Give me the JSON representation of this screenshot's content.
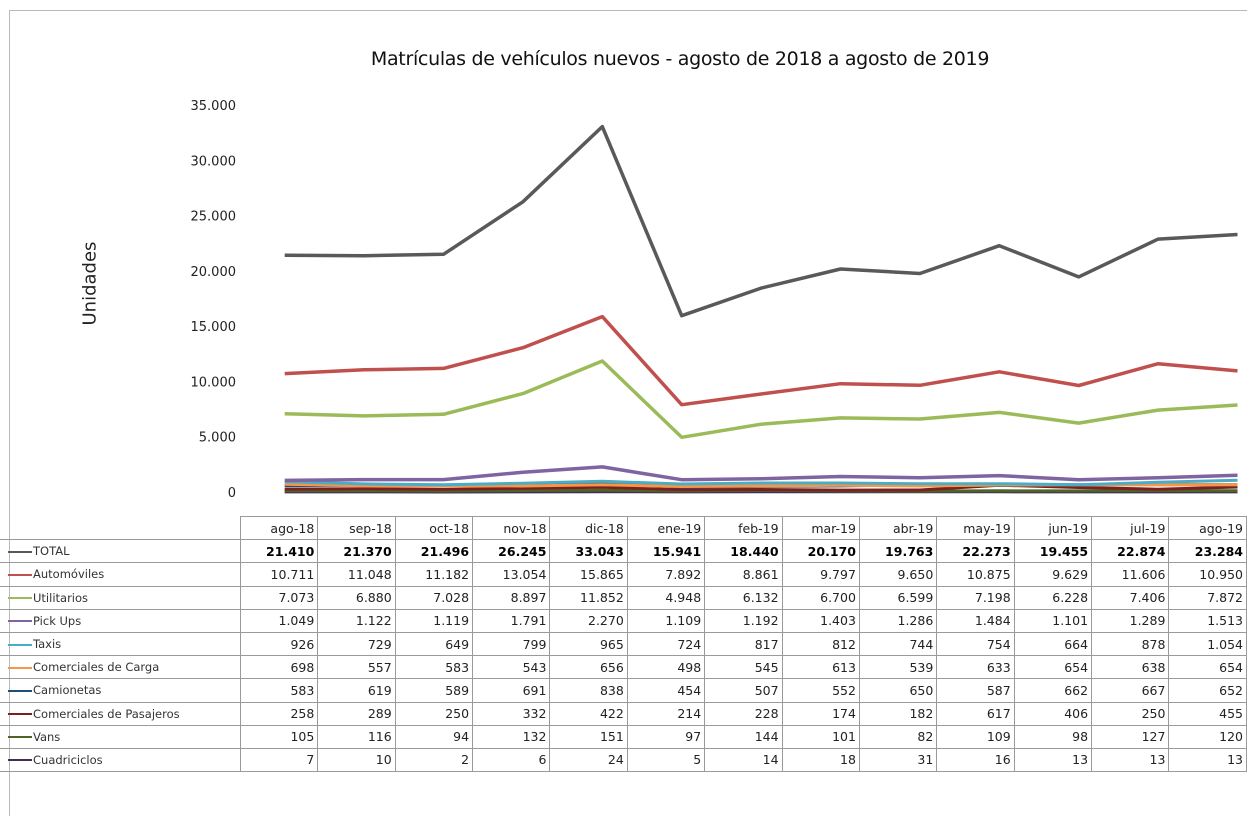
{
  "chart_data": {
    "type": "line",
    "title": "Matrículas de vehículos nuevos - agosto de 2018 a agosto de 2019",
    "ylabel": "Unidades",
    "xlabel": "",
    "ylim": [
      0,
      35000
    ],
    "yticks": [
      "0",
      "5.000",
      "10.000",
      "15.000",
      "20.000",
      "25.000",
      "30.000",
      "35.000"
    ],
    "grid": false,
    "legend": "table-below",
    "categories": [
      "ago-18",
      "sep-18",
      "oct-18",
      "nov-18",
      "dic-18",
      "ene-19",
      "feb-19",
      "mar-19",
      "abr-19",
      "may-19",
      "jun-19",
      "jul-19",
      "ago-19"
    ],
    "series": [
      {
        "name": "TOTAL",
        "color": "#595959",
        "values": [
          21410,
          21370,
          21496,
          26245,
          33043,
          15941,
          18440,
          20170,
          19763,
          22273,
          19455,
          22874,
          23284
        ],
        "labels": [
          "21.410",
          "21.370",
          "21.496",
          "26.245",
          "33.043",
          "15.941",
          "18.440",
          "20.170",
          "19.763",
          "22.273",
          "19.455",
          "22.874",
          "23.284"
        ]
      },
      {
        "name": "Automóviles",
        "color": "#c0504d",
        "values": [
          10711,
          11048,
          11182,
          13054,
          15865,
          7892,
          8861,
          9797,
          9650,
          10875,
          9629,
          11606,
          10950
        ],
        "labels": [
          "10.711",
          "11.048",
          "11.182",
          "13.054",
          "15.865",
          "7.892",
          "8.861",
          "9.797",
          "9.650",
          "10.875",
          "9.629",
          "11.606",
          "10.950"
        ]
      },
      {
        "name": "Utilitarios",
        "color": "#9bbb59",
        "values": [
          7073,
          6880,
          7028,
          8897,
          11852,
          4948,
          6132,
          6700,
          6599,
          7198,
          6228,
          7406,
          7872
        ],
        "labels": [
          "7.073",
          "6.880",
          "7.028",
          "8.897",
          "11.852",
          "4.948",
          "6.132",
          "6.700",
          "6.599",
          "7.198",
          "6.228",
          "7.406",
          "7.872"
        ]
      },
      {
        "name": "Pick Ups",
        "color": "#8064a2",
        "values": [
          1049,
          1122,
          1119,
          1791,
          2270,
          1109,
          1192,
          1403,
          1286,
          1484,
          1101,
          1289,
          1513
        ],
        "labels": [
          "1.049",
          "1.122",
          "1.119",
          "1.791",
          "2.270",
          "1.109",
          "1.192",
          "1.403",
          "1.286",
          "1.484",
          "1.101",
          "1.289",
          "1.513"
        ]
      },
      {
        "name": "Taxis",
        "color": "#4bacc6",
        "values": [
          926,
          729,
          649,
          799,
          965,
          724,
          817,
          812,
          744,
          754,
          664,
          878,
          1054
        ],
        "labels": [
          "926",
          "729",
          "649",
          "799",
          "965",
          "724",
          "817",
          "812",
          "744",
          "754",
          "664",
          "878",
          "1.054"
        ]
      },
      {
        "name": "Comerciales de Carga",
        "color": "#f79646",
        "values": [
          698,
          557,
          583,
          543,
          656,
          498,
          545,
          613,
          539,
          633,
          654,
          638,
          654
        ],
        "labels": [
          "698",
          "557",
          "583",
          "543",
          "656",
          "498",
          "545",
          "613",
          "539",
          "633",
          "654",
          "638",
          "654"
        ]
      },
      {
        "name": "Camionetas",
        "color": "#1f4e79",
        "values": [
          583,
          619,
          589,
          691,
          838,
          454,
          507,
          552,
          650,
          587,
          662,
          667,
          652
        ],
        "labels": [
          "583",
          "619",
          "589",
          "691",
          "838",
          "454",
          "507",
          "552",
          "650",
          "587",
          "662",
          "667",
          "652"
        ]
      },
      {
        "name": "Comerciales de Pasajeros",
        "color": "#7b2020",
        "values": [
          258,
          289,
          250,
          332,
          422,
          214,
          228,
          174,
          182,
          617,
          406,
          250,
          455
        ],
        "labels": [
          "258",
          "289",
          "250",
          "332",
          "422",
          "214",
          "228",
          "174",
          "182",
          "617",
          "406",
          "250",
          "455"
        ]
      },
      {
        "name": "Vans",
        "color": "#4f6228",
        "values": [
          105,
          116,
          94,
          132,
          151,
          97,
          144,
          101,
          82,
          109,
          98,
          127,
          120
        ],
        "labels": [
          "105",
          "116",
          "94",
          "132",
          "151",
          "97",
          "144",
          "101",
          "82",
          "109",
          "98",
          "127",
          "120"
        ]
      },
      {
        "name": "Cuadriciclos",
        "color": "#3f3151",
        "values": [
          7,
          10,
          2,
          6,
          24,
          5,
          14,
          18,
          31,
          16,
          13,
          13,
          13
        ],
        "labels": [
          "7",
          "10",
          "2",
          "6",
          "24",
          "5",
          "14",
          "18",
          "31",
          "16",
          "13",
          "13",
          "13"
        ]
      }
    ]
  }
}
